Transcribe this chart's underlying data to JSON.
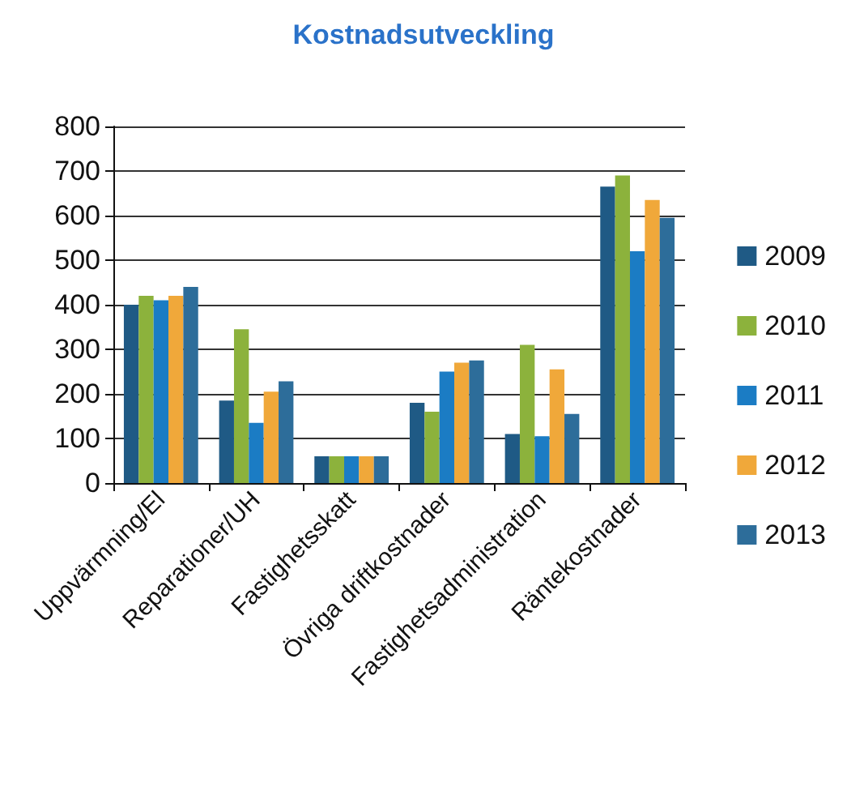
{
  "chart_data": {
    "type": "bar",
    "title": "Kostnadsutveckling",
    "categories": [
      "Uppvärmning/El",
      "Reparationer/UH",
      "Fastighetsskatt",
      "Övriga driftkostnader",
      "Fastighetsadministration",
      "Räntekostnader"
    ],
    "series": [
      {
        "name": "2009",
        "color": "#1f5a85",
        "values": [
          400,
          185,
          60,
          180,
          110,
          665
        ]
      },
      {
        "name": "2010",
        "color": "#8cb23c",
        "values": [
          420,
          345,
          60,
          160,
          310,
          690
        ]
      },
      {
        "name": "2011",
        "color": "#1b7cc4",
        "values": [
          410,
          135,
          60,
          250,
          105,
          520
        ]
      },
      {
        "name": "2012",
        "color": "#f0a83a",
        "values": [
          420,
          205,
          60,
          270,
          255,
          635
        ]
      },
      {
        "name": "2013",
        "color": "#2d6d9a",
        "values": [
          440,
          228,
          60,
          275,
          155,
          595
        ]
      }
    ],
    "ylim": [
      0,
      800
    ],
    "yticks": [
      0,
      100,
      200,
      300,
      400,
      500,
      600,
      700,
      800
    ],
    "grid": "y",
    "legend": "right"
  }
}
